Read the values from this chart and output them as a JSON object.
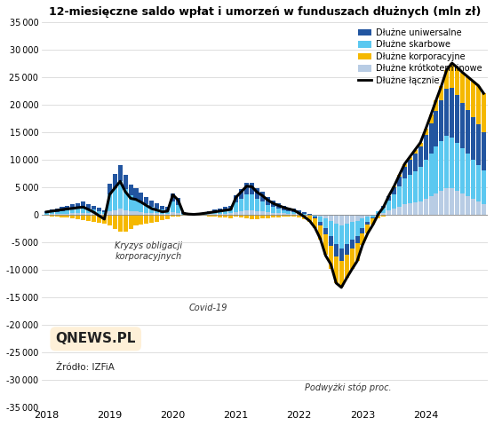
{
  "title": "12-miesięczne saldo wpłat i umorzeń w funduszach dłużnych (mln zł)",
  "ylim": [
    -35000,
    35000
  ],
  "yticks": [
    -35000,
    -30000,
    -25000,
    -20000,
    -15000,
    -10000,
    -5000,
    0,
    5000,
    10000,
    15000,
    20000,
    25000,
    30000,
    35000
  ],
  "colors": {
    "uniwersalne": "#2255A0",
    "skarbowe": "#5BC8F0",
    "korporacyjne": "#F5B800",
    "krotkoterminowe": "#B8CCE4",
    "lacznie": "#000000"
  },
  "n_months": 84,
  "x_year_ticks": [
    0,
    12,
    24,
    36,
    48,
    60,
    72
  ],
  "x_year_labels": [
    "2018",
    "2019",
    "2020",
    "2021",
    "2022",
    "2023",
    "2024"
  ],
  "uniwersalne": [
    400,
    500,
    600,
    700,
    800,
    900,
    1000,
    1100,
    900,
    700,
    500,
    350,
    2000,
    2500,
    3000,
    2500,
    2000,
    1800,
    1600,
    1400,
    1100,
    900,
    700,
    600,
    1500,
    1200,
    300,
    100,
    80,
    120,
    200,
    300,
    400,
    500,
    600,
    700,
    1200,
    1700,
    2200,
    2200,
    1900,
    1800,
    1500,
    1200,
    1000,
    800,
    650,
    550,
    400,
    200,
    50,
    -200,
    -600,
    -1200,
    -1800,
    -2300,
    -2300,
    -2000,
    -1700,
    -1400,
    -900,
    -500,
    -200,
    150,
    400,
    800,
    1200,
    1700,
    2200,
    2700,
    3200,
    3700,
    4500,
    5500,
    6500,
    7500,
    8500,
    9000,
    8700,
    8300,
    8000,
    7700,
    7400,
    7000
  ],
  "skarbowe": [
    200,
    300,
    400,
    500,
    600,
    700,
    800,
    900,
    800,
    700,
    500,
    300,
    3000,
    4000,
    5000,
    3800,
    2800,
    2400,
    2000,
    1500,
    1100,
    900,
    750,
    700,
    2000,
    1500,
    100,
    80,
    30,
    80,
    150,
    250,
    350,
    450,
    550,
    650,
    1800,
    2300,
    2800,
    2800,
    2300,
    1800,
    1300,
    1000,
    800,
    600,
    500,
    400,
    250,
    150,
    30,
    -250,
    -900,
    -1700,
    -2700,
    -3700,
    -4200,
    -3700,
    -3200,
    -2700,
    -1700,
    -900,
    -350,
    400,
    900,
    1800,
    2700,
    3700,
    4700,
    5200,
    5700,
    6200,
    7200,
    7800,
    8500,
    9000,
    9500,
    9200,
    8700,
    8200,
    7700,
    7200,
    6700,
    6200
  ],
  "korporacyjne": [
    -150,
    -250,
    -350,
    -450,
    -550,
    -700,
    -800,
    -950,
    -1050,
    -1200,
    -1400,
    -1600,
    -2000,
    -2500,
    -3000,
    -3000,
    -2500,
    -2000,
    -1800,
    -1600,
    -1400,
    -1200,
    -1000,
    -800,
    -300,
    -350,
    -200,
    -80,
    -40,
    -80,
    -150,
    -250,
    -350,
    -450,
    -550,
    -650,
    -300,
    -500,
    -700,
    -800,
    -800,
    -700,
    -600,
    -500,
    -400,
    -300,
    -280,
    -270,
    -500,
    -800,
    -1200,
    -1800,
    -2600,
    -3700,
    -4200,
    -4800,
    -4700,
    -4200,
    -3700,
    -3200,
    -2200,
    -1600,
    -1100,
    -600,
    -250,
    100,
    200,
    350,
    450,
    550,
    650,
    750,
    1000,
    1500,
    2000,
    2600,
    3500,
    4500,
    5000,
    5500,
    6000,
    6500,
    7000,
    7000
  ],
  "krotkoterminowe": [
    80,
    120,
    160,
    200,
    240,
    280,
    320,
    360,
    320,
    280,
    230,
    180,
    700,
    900,
    1100,
    900,
    700,
    600,
    500,
    400,
    320,
    260,
    210,
    170,
    450,
    350,
    80,
    40,
    15,
    40,
    80,
    120,
    160,
    200,
    240,
    280,
    500,
    700,
    900,
    900,
    700,
    600,
    500,
    400,
    320,
    260,
    210,
    170,
    120,
    80,
    30,
    -120,
    -350,
    -700,
    -1100,
    -1600,
    -1900,
    -1600,
    -1300,
    -1100,
    -700,
    -350,
    -120,
    180,
    380,
    750,
    1100,
    1500,
    1900,
    2100,
    2300,
    2500,
    2900,
    3400,
    3900,
    4400,
    4900,
    4900,
    4400,
    3900,
    3400,
    2900,
    2400,
    1900
  ],
  "lacznie": [
    530,
    670,
    810,
    950,
    1090,
    1180,
    1320,
    1410,
    970,
    480,
    -165,
    -770,
    3700,
    4900,
    6100,
    4200,
    3000,
    2800,
    2300,
    1700,
    1130,
    860,
    560,
    670,
    3650,
    2700,
    280,
    140,
    85,
    160,
    280,
    420,
    560,
    700,
    840,
    980,
    3200,
    4200,
    5220,
    5120,
    4120,
    3500,
    2700,
    2110,
    1720,
    1360,
    1080,
    850,
    270,
    -370,
    -1120,
    -2370,
    -4360,
    -7400,
    -9000,
    -12400,
    -13200,
    -11500,
    -9900,
    -8400,
    -5500,
    -3350,
    -1770,
    130,
    1430,
    3450,
    5200,
    7250,
    9250,
    10550,
    11850,
    13150,
    15600,
    18200,
    20900,
    23500,
    26400,
    27600,
    26800,
    25900,
    25100,
    24300,
    23500,
    22100
  ],
  "background_color": "#FFFFFF",
  "qnews_box_color": "#FEF0D8",
  "source_text": "Źródło: IZFiA",
  "ann_kryzys_x": 13,
  "ann_kryzys_y": -8000,
  "ann_covid_x": 27,
  "ann_covid_y": -17500,
  "ann_podwyzki_x": 49,
  "ann_podwyzki_y": -32000
}
